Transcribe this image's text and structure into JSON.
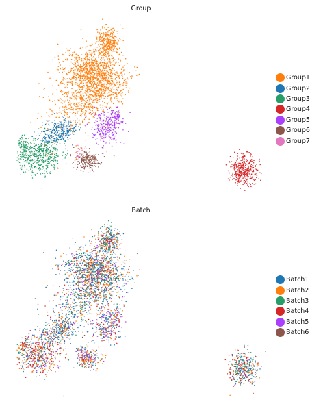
{
  "chart_data": [
    {
      "type": "scatter",
      "title": "Group",
      "legend_position": "right",
      "grid": false,
      "series": [
        {
          "name": "Group1",
          "color": "#ff7f0e"
        },
        {
          "name": "Group2",
          "color": "#1f77b4"
        },
        {
          "name": "Group3",
          "color": "#279e68"
        },
        {
          "name": "Group4",
          "color": "#d62728"
        },
        {
          "name": "Group5",
          "color": "#aa40fc"
        },
        {
          "name": "Group6",
          "color": "#8c564b"
        },
        {
          "name": "Group7",
          "color": "#e377c2"
        }
      ]
    },
    {
      "type": "scatter",
      "title": "Batch",
      "legend_position": "right",
      "grid": false,
      "series": [
        {
          "name": "Batch1",
          "color": "#1f77b4"
        },
        {
          "name": "Batch2",
          "color": "#ff7f0e"
        },
        {
          "name": "Batch3",
          "color": "#279e68"
        },
        {
          "name": "Batch4",
          "color": "#d62728"
        },
        {
          "name": "Batch5",
          "color": "#aa40fc"
        },
        {
          "name": "Batch6",
          "color": "#8c564b"
        }
      ]
    }
  ]
}
